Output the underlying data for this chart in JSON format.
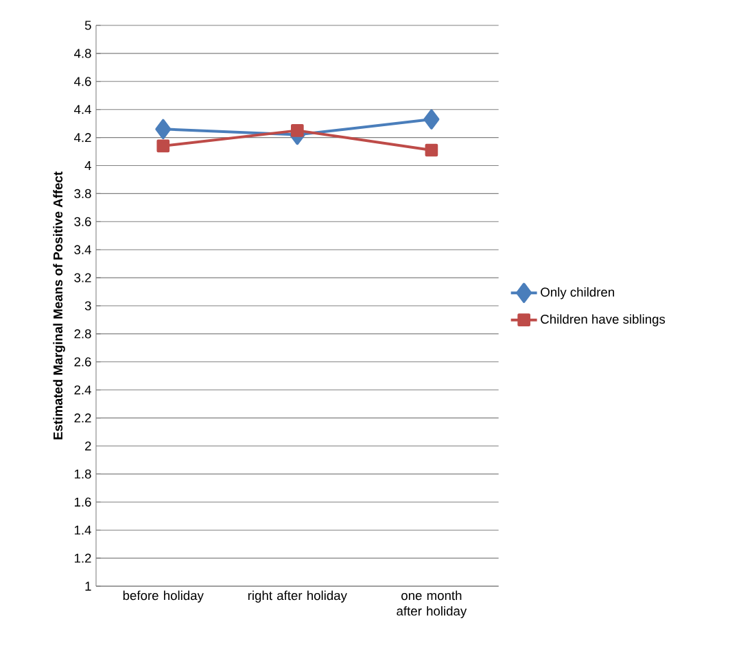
{
  "chart_data": {
    "type": "line",
    "ylabel": "**Estimated Marginal Means of Positive Affect**",
    "categories": [
      "before holiday",
      "right after holiday",
      "one month after holiday"
    ],
    "series": [
      {
        "name": "Only children",
        "color": "#4a7ebb",
        "marker": "diamond",
        "values": [
          4.26,
          4.22,
          4.33
        ]
      },
      {
        "name": "Children have siblings",
        "color": "#be4b48",
        "marker": "square",
        "values": [
          4.14,
          4.25,
          4.11
        ]
      }
    ],
    "ylim": [
      1,
      5
    ],
    "yticks": [
      1,
      1.2,
      1.4,
      1.6,
      1.8,
      2,
      2.2,
      2.4,
      2.6,
      2.8,
      3,
      3.2,
      3.4,
      3.6,
      3.8,
      4,
      4.2,
      4.4,
      4.6,
      4.8,
      5
    ],
    "grid": "y",
    "legend": "right",
    "line_style": "solid"
  }
}
